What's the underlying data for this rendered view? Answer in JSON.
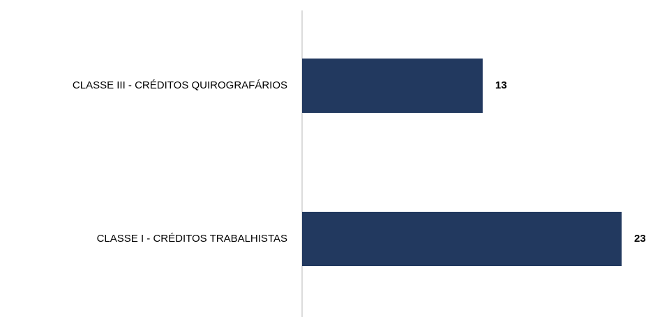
{
  "chart_data": {
    "type": "bar",
    "orientation": "horizontal",
    "categories": [
      "CLASSE III - CRÉDITOS QUIROGRAFÁRIOS",
      "CLASSE I - CRÉDITOS TRABALHISTAS"
    ],
    "values": [
      13,
      23
    ],
    "color": "#22395f"
  }
}
